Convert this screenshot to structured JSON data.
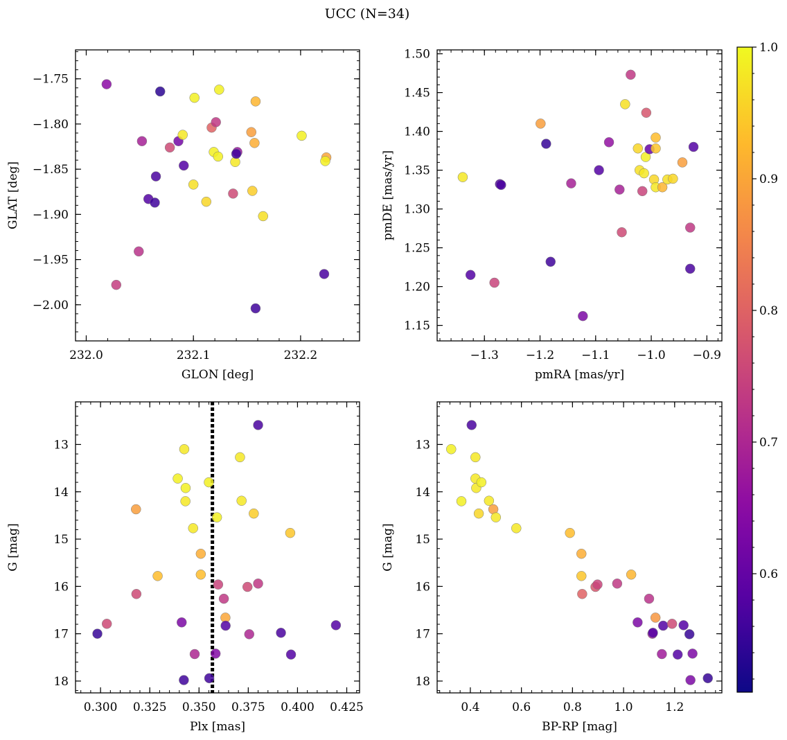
{
  "figure": {
    "title": "UCC (N=34)"
  },
  "colorbar": {
    "colormap": "plasma",
    "range": [
      0.51,
      1.0
    ],
    "ticks": [
      "0.6",
      "0.7",
      "0.8",
      "0.9",
      "1.0"
    ],
    "tick_values": [
      0.6,
      0.7,
      0.8,
      0.9,
      1.0
    ]
  },
  "chart_data": [
    {
      "type": "scatter",
      "xlabel": "GLON [deg]",
      "ylabel": "GLAT [deg]",
      "xlim": [
        231.99,
        232.255
      ],
      "ylim": [
        -2.04,
        -1.718
      ],
      "xticks": [
        232.0,
        232.1,
        232.2
      ],
      "xtick_labels": [
        "232.0",
        "232.1",
        "232.2"
      ],
      "yticks": [
        -1.75,
        -1.8,
        -1.85,
        -1.9,
        -1.95,
        -2.0
      ],
      "ytick_labels": [
        "−1.75",
        "−1.80",
        "−1.85",
        "−1.90",
        "−1.95",
        "−2.00"
      ],
      "points": [
        {
          "x": 232.019,
          "y": -1.756,
          "c": 0.65
        },
        {
          "x": 232.028,
          "y": -1.978,
          "c": 0.74
        },
        {
          "x": 232.049,
          "y": -1.941,
          "c": 0.72
        },
        {
          "x": 232.052,
          "y": -1.819,
          "c": 0.69
        },
        {
          "x": 232.058,
          "y": -1.883,
          "c": 0.58
        },
        {
          "x": 232.064,
          "y": -1.887,
          "c": 0.56
        },
        {
          "x": 232.065,
          "y": -1.858,
          "c": 0.57
        },
        {
          "x": 232.069,
          "y": -1.764,
          "c": 0.54
        },
        {
          "x": 232.078,
          "y": -1.826,
          "c": 0.76
        },
        {
          "x": 232.086,
          "y": -1.819,
          "c": 0.62
        },
        {
          "x": 232.091,
          "y": -1.846,
          "c": 0.58
        },
        {
          "x": 232.09,
          "y": -1.812,
          "c": 0.98
        },
        {
          "x": 232.101,
          "y": -1.771,
          "c": 0.99
        },
        {
          "x": 232.1,
          "y": -1.867,
          "c": 0.97
        },
        {
          "x": 232.112,
          "y": -1.886,
          "c": 0.96
        },
        {
          "x": 232.117,
          "y": -1.804,
          "c": 0.8
        },
        {
          "x": 232.119,
          "y": -1.831,
          "c": 0.99
        },
        {
          "x": 232.121,
          "y": -1.798,
          "c": 0.73
        },
        {
          "x": 232.123,
          "y": -1.836,
          "c": 0.99
        },
        {
          "x": 232.124,
          "y": -1.762,
          "c": 0.99
        },
        {
          "x": 232.137,
          "y": -1.877,
          "c": 0.76
        },
        {
          "x": 232.139,
          "y": -1.842,
          "c": 0.98
        },
        {
          "x": 232.141,
          "y": -1.831,
          "c": 0.67
        },
        {
          "x": 232.14,
          "y": -1.833,
          "c": 0.56
        },
        {
          "x": 232.154,
          "y": -1.809,
          "c": 0.89
        },
        {
          "x": 232.155,
          "y": -1.874,
          "c": 0.95
        },
        {
          "x": 232.157,
          "y": -1.821,
          "c": 0.91
        },
        {
          "x": 232.158,
          "y": -1.775,
          "c": 0.92
        },
        {
          "x": 232.158,
          "y": -2.004,
          "c": 0.56
        },
        {
          "x": 232.165,
          "y": -1.902,
          "c": 0.97
        },
        {
          "x": 232.201,
          "y": -1.813,
          "c": 0.99
        },
        {
          "x": 232.222,
          "y": -1.966,
          "c": 0.57
        },
        {
          "x": 232.224,
          "y": -1.837,
          "c": 0.9
        },
        {
          "x": 232.223,
          "y": -1.841,
          "c": 0.99
        }
      ]
    },
    {
      "type": "scatter",
      "xlabel": "pmRA [mas/yr]",
      "ylabel": "pmDE [mas/yr]",
      "xlim": [
        -1.385,
        -0.873
      ],
      "ylim": [
        1.13,
        1.505
      ],
      "xticks": [
        -1.3,
        -1.2,
        -1.1,
        -1.0,
        -0.9
      ],
      "xtick_labels": [
        "−1.3",
        "−1.2",
        "−1.1",
        "−1.0",
        "−0.9"
      ],
      "yticks": [
        1.15,
        1.2,
        1.25,
        1.3,
        1.35,
        1.4,
        1.45,
        1.5
      ],
      "ytick_labels": [
        "1.15",
        "1.20",
        "1.25",
        "1.30",
        "1.35",
        "1.40",
        "1.45",
        "1.50"
      ],
      "points": [
        {
          "x": -1.339,
          "y": 1.341,
          "c": 0.98
        },
        {
          "x": -1.325,
          "y": 1.215,
          "c": 0.58
        },
        {
          "x": -1.272,
          "y": 1.332,
          "c": 0.58
        },
        {
          "x": -1.282,
          "y": 1.205,
          "c": 0.75
        },
        {
          "x": -1.199,
          "y": 1.41,
          "c": 0.89
        },
        {
          "x": -1.189,
          "y": 1.384,
          "c": 0.55
        },
        {
          "x": -1.181,
          "y": 1.232,
          "c": 0.56
        },
        {
          "x": -1.123,
          "y": 1.162,
          "c": 0.63
        },
        {
          "x": -1.144,
          "y": 1.333,
          "c": 0.69
        },
        {
          "x": -1.094,
          "y": 1.35,
          "c": 0.58
        },
        {
          "x": -1.076,
          "y": 1.386,
          "c": 0.66
        },
        {
          "x": -1.037,
          "y": 1.473,
          "c": 0.73
        },
        {
          "x": -1.047,
          "y": 1.435,
          "c": 0.97
        },
        {
          "x": -1.057,
          "y": 1.325,
          "c": 0.69
        },
        {
          "x": -1.053,
          "y": 1.27,
          "c": 0.76
        },
        {
          "x": -1.009,
          "y": 1.424,
          "c": 0.78
        },
        {
          "x": -1.024,
          "y": 1.378,
          "c": 0.96
        },
        {
          "x": -1.021,
          "y": 1.35,
          "c": 0.97
        },
        {
          "x": -1.013,
          "y": 1.346,
          "c": 0.98
        },
        {
          "x": -1.016,
          "y": 1.323,
          "c": 0.75
        },
        {
          "x": -1.01,
          "y": 1.367,
          "c": 0.99
        },
        {
          "x": -1.003,
          "y": 1.377,
          "c": 0.6
        },
        {
          "x": -0.992,
          "y": 1.392,
          "c": 0.93
        },
        {
          "x": -0.992,
          "y": 1.378,
          "c": 0.94
        },
        {
          "x": -0.995,
          "y": 1.338,
          "c": 0.96
        },
        {
          "x": -0.992,
          "y": 1.328,
          "c": 0.98
        },
        {
          "x": -0.98,
          "y": 1.328,
          "c": 0.92
        },
        {
          "x": -0.971,
          "y": 1.338,
          "c": 0.97
        },
        {
          "x": -0.961,
          "y": 1.339,
          "c": 0.96
        },
        {
          "x": -0.944,
          "y": 1.36,
          "c": 0.89
        },
        {
          "x": -0.93,
          "y": 1.276,
          "c": 0.73
        },
        {
          "x": -0.93,
          "y": 1.223,
          "c": 0.57
        },
        {
          "x": -0.924,
          "y": 1.38,
          "c": 0.58
        },
        {
          "x": -1.27,
          "y": 1.331,
          "c": 0.57
        }
      ]
    },
    {
      "type": "scatter",
      "xlabel": "Plx [mas]",
      "ylabel": "G [mag]",
      "xlim": [
        0.2873,
        0.4315
      ],
      "ylim": [
        18.25,
        12.1
      ],
      "xticks": [
        0.3,
        0.325,
        0.35,
        0.375,
        0.4,
        0.425
      ],
      "xtick_labels": [
        "0.300",
        "0.325",
        "0.350",
        "0.375",
        "0.400",
        "0.425"
      ],
      "yticks": [
        13,
        14,
        15,
        16,
        17,
        18
      ],
      "ytick_labels": [
        "13",
        "14",
        "15",
        "16",
        "17",
        "18"
      ],
      "vline": {
        "x": 0.3568
      },
      "points": [
        {
          "x": 0.2984,
          "y": 17.0,
          "c": 0.55
        },
        {
          "x": 0.3032,
          "y": 16.79,
          "c": 0.76
        },
        {
          "x": 0.318,
          "y": 14.37,
          "c": 0.89
        },
        {
          "x": 0.3182,
          "y": 16.16,
          "c": 0.76
        },
        {
          "x": 0.329,
          "y": 15.78,
          "c": 0.93
        },
        {
          "x": 0.3392,
          "y": 13.72,
          "c": 0.99
        },
        {
          "x": 0.3412,
          "y": 16.76,
          "c": 0.63
        },
        {
          "x": 0.3423,
          "y": 17.98,
          "c": 0.56
        },
        {
          "x": 0.3425,
          "y": 13.1,
          "c": 0.98
        },
        {
          "x": 0.3432,
          "y": 13.92,
          "c": 0.99
        },
        {
          "x": 0.3431,
          "y": 14.2,
          "c": 0.98
        },
        {
          "x": 0.347,
          "y": 14.77,
          "c": 0.98
        },
        {
          "x": 0.3478,
          "y": 17.43,
          "c": 0.7
        },
        {
          "x": 0.3509,
          "y": 15.31,
          "c": 0.91
        },
        {
          "x": 0.3509,
          "y": 15.75,
          "c": 0.93
        },
        {
          "x": 0.355,
          "y": 13.8,
          "c": 0.99
        },
        {
          "x": 0.3552,
          "y": 17.94,
          "c": 0.56
        },
        {
          "x": 0.3584,
          "y": 17.42,
          "c": 0.64
        },
        {
          "x": 0.3591,
          "y": 14.54,
          "c": 0.99
        },
        {
          "x": 0.3597,
          "y": 15.96,
          "c": 0.75
        },
        {
          "x": 0.3626,
          "y": 16.26,
          "c": 0.73
        },
        {
          "x": 0.3634,
          "y": 16.66,
          "c": 0.9
        },
        {
          "x": 0.3635,
          "y": 16.83,
          "c": 0.58
        },
        {
          "x": 0.3708,
          "y": 13.27,
          "c": 0.98
        },
        {
          "x": 0.3716,
          "y": 14.19,
          "c": 0.98
        },
        {
          "x": 0.3746,
          "y": 16.01,
          "c": 0.76
        },
        {
          "x": 0.3755,
          "y": 17.01,
          "c": 0.7
        },
        {
          "x": 0.3778,
          "y": 14.46,
          "c": 0.95
        },
        {
          "x": 0.38,
          "y": 15.94,
          "c": 0.73
        },
        {
          "x": 0.38,
          "y": 12.59,
          "c": 0.57
        },
        {
          "x": 0.3916,
          "y": 16.98,
          "c": 0.57
        },
        {
          "x": 0.3963,
          "y": 14.87,
          "c": 0.94
        },
        {
          "x": 0.3967,
          "y": 17.44,
          "c": 0.58
        },
        {
          "x": 0.4195,
          "y": 16.82,
          "c": 0.58
        }
      ]
    },
    {
      "type": "scatter",
      "xlabel": "BP-RP [mag]",
      "ylabel": "G [mag]",
      "xlim": [
        0.27,
        1.385
      ],
      "ylim": [
        18.25,
        12.1
      ],
      "xticks": [
        0.4,
        0.6,
        0.8,
        1.0,
        1.2
      ],
      "xtick_labels": [
        "0.4",
        "0.6",
        "0.8",
        "1.0",
        "1.2"
      ],
      "yticks": [
        13,
        14,
        15,
        16,
        17,
        18
      ],
      "ytick_labels": [
        "13",
        "14",
        "15",
        "16",
        "17",
        "18"
      ],
      "points": [
        {
          "x": 0.325,
          "y": 13.1,
          "c": 0.99
        },
        {
          "x": 0.405,
          "y": 12.59,
          "c": 0.57
        },
        {
          "x": 0.42,
          "y": 13.27,
          "c": 0.98
        },
        {
          "x": 0.42,
          "y": 13.72,
          "c": 0.98
        },
        {
          "x": 0.423,
          "y": 13.92,
          "c": 0.98
        },
        {
          "x": 0.443,
          "y": 13.8,
          "c": 0.99
        },
        {
          "x": 0.365,
          "y": 14.2,
          "c": 0.99
        },
        {
          "x": 0.473,
          "y": 14.19,
          "c": 0.98
        },
        {
          "x": 0.433,
          "y": 14.46,
          "c": 0.96
        },
        {
          "x": 0.49,
          "y": 14.37,
          "c": 0.89
        },
        {
          "x": 0.5,
          "y": 14.54,
          "c": 0.98
        },
        {
          "x": 0.58,
          "y": 14.77,
          "c": 0.98
        },
        {
          "x": 0.79,
          "y": 14.87,
          "c": 0.93
        },
        {
          "x": 0.835,
          "y": 15.31,
          "c": 0.91
        },
        {
          "x": 0.835,
          "y": 15.78,
          "c": 0.94
        },
        {
          "x": 0.89,
          "y": 16.01,
          "c": 0.78
        },
        {
          "x": 0.898,
          "y": 15.96,
          "c": 0.75
        },
        {
          "x": 0.975,
          "y": 15.94,
          "c": 0.73
        },
        {
          "x": 1.03,
          "y": 15.75,
          "c": 0.92
        },
        {
          "x": 1.055,
          "y": 16.76,
          "c": 0.63
        },
        {
          "x": 1.1,
          "y": 16.26,
          "c": 0.72
        },
        {
          "x": 1.113,
          "y": 17.0,
          "c": 0.69
        },
        {
          "x": 1.115,
          "y": 16.98,
          "c": 0.58
        },
        {
          "x": 1.125,
          "y": 16.66,
          "c": 0.88
        },
        {
          "x": 1.15,
          "y": 17.43,
          "c": 0.68
        },
        {
          "x": 1.155,
          "y": 16.83,
          "c": 0.58
        },
        {
          "x": 1.19,
          "y": 16.79,
          "c": 0.76
        },
        {
          "x": 1.212,
          "y": 17.44,
          "c": 0.58
        },
        {
          "x": 1.235,
          "y": 16.82,
          "c": 0.58
        },
        {
          "x": 1.258,
          "y": 17.01,
          "c": 0.55
        },
        {
          "x": 1.262,
          "y": 17.98,
          "c": 0.63
        },
        {
          "x": 1.27,
          "y": 17.42,
          "c": 0.63
        },
        {
          "x": 1.33,
          "y": 17.94,
          "c": 0.55
        },
        {
          "x": 0.838,
          "y": 16.16,
          "c": 0.8
        }
      ]
    }
  ]
}
